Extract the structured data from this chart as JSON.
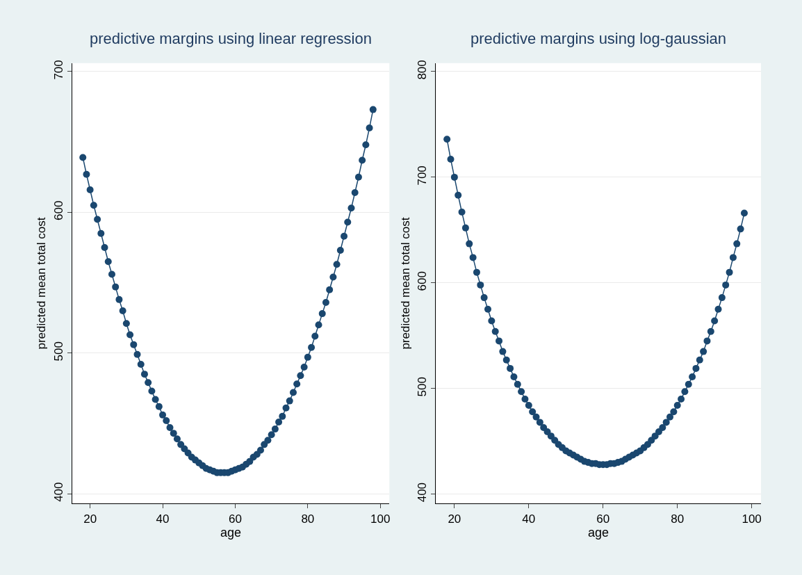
{
  "chart_data": [
    {
      "type": "line",
      "title": "predictive margins using linear regression",
      "xlabel": "age",
      "ylabel": "predicted mean total cost",
      "color": "#1a476f",
      "marker": "circle",
      "grid": "y",
      "x": [
        18,
        19,
        20,
        21,
        22,
        23,
        24,
        25,
        26,
        27,
        28,
        29,
        30,
        31,
        32,
        33,
        34,
        35,
        36,
        37,
        38,
        39,
        40,
        41,
        42,
        43,
        44,
        45,
        46,
        47,
        48,
        49,
        50,
        51,
        52,
        53,
        54,
        55,
        56,
        57,
        58,
        59,
        60,
        61,
        62,
        63,
        64,
        65,
        66,
        67,
        68,
        69,
        70,
        71,
        72,
        73,
        74,
        75,
        76,
        77,
        78,
        79,
        80,
        81,
        82,
        83,
        84,
        85,
        86,
        87,
        88,
        89,
        90,
        91,
        92,
        93,
        94,
        95,
        96,
        97,
        98
      ],
      "values": [
        639,
        627,
        616,
        605,
        595,
        585,
        575,
        565,
        556,
        547,
        538,
        530,
        521,
        513,
        506,
        499,
        492,
        485,
        479,
        473,
        467,
        462,
        456,
        452,
        447,
        443,
        439,
        435,
        432,
        429,
        426,
        424,
        422,
        420,
        418,
        417,
        416,
        415,
        415,
        415,
        415,
        416,
        417,
        418,
        419,
        421,
        423,
        426,
        428,
        431,
        435,
        438,
        442,
        446,
        451,
        455,
        461,
        466,
        472,
        478,
        484,
        490,
        497,
        504,
        512,
        520,
        528,
        536,
        545,
        554,
        563,
        573,
        583,
        593,
        603,
        614,
        625,
        637,
        648,
        660,
        673
      ],
      "xlim": [
        15,
        102.5
      ],
      "ylim": [
        393,
        706
      ],
      "xticks": [
        20,
        40,
        60,
        80,
        100
      ],
      "yticks": [
        400,
        500,
        600,
        700
      ]
    },
    {
      "type": "line",
      "title": "predictive margins using log-gaussian",
      "xlabel": "age",
      "ylabel": "predicted mean total cost",
      "color": "#1a476f",
      "marker": "circle",
      "grid": "y",
      "x": [
        18,
        19,
        20,
        21,
        22,
        23,
        24,
        25,
        26,
        27,
        28,
        29,
        30,
        31,
        32,
        33,
        34,
        35,
        36,
        37,
        38,
        39,
        40,
        41,
        42,
        43,
        44,
        45,
        46,
        47,
        48,
        49,
        50,
        51,
        52,
        53,
        54,
        55,
        56,
        57,
        58,
        59,
        60,
        61,
        62,
        63,
        64,
        65,
        66,
        67,
        68,
        69,
        70,
        71,
        72,
        73,
        74,
        75,
        76,
        77,
        78,
        79,
        80,
        81,
        82,
        83,
        84,
        85,
        86,
        87,
        88,
        89,
        90,
        91,
        92,
        93,
        94,
        95,
        96,
        97,
        98
      ],
      "values": [
        736,
        717,
        700,
        683,
        667,
        652,
        637,
        624,
        610,
        598,
        586,
        575,
        564,
        554,
        545,
        535,
        527,
        519,
        511,
        504,
        497,
        490,
        484,
        478,
        473,
        468,
        463,
        459,
        455,
        451,
        447,
        444,
        441,
        439,
        437,
        435,
        433,
        431,
        430,
        429,
        429,
        428,
        428,
        428,
        429,
        429,
        430,
        431,
        433,
        435,
        437,
        439,
        441,
        444,
        447,
        451,
        455,
        459,
        463,
        468,
        473,
        478,
        484,
        490,
        497,
        504,
        511,
        519,
        527,
        535,
        545,
        554,
        564,
        575,
        586,
        598,
        610,
        624,
        637,
        651,
        666
      ],
      "xlim": [
        15,
        102.5
      ],
      "ylim": [
        391,
        808
      ],
      "xticks": [
        20,
        40,
        60,
        80,
        100
      ],
      "yticks": [
        400,
        500,
        600,
        700,
        800
      ]
    }
  ]
}
